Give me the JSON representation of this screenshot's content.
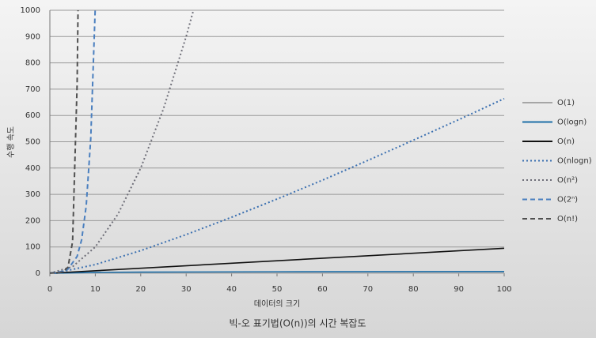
{
  "chart_data": {
    "type": "line",
    "title": "빅-오 표기법(O(n))의 시간 복잡도",
    "x_label": "데이터의 크기",
    "y_label": "수행 속도",
    "xlim": [
      0,
      100
    ],
    "xticks": [
      0,
      10,
      20,
      30,
      40,
      50,
      60,
      70,
      80,
      90,
      100
    ],
    "ylim": [
      0,
      1000
    ],
    "yticks": [
      0,
      100,
      200,
      300,
      400,
      500,
      600,
      700,
      800,
      900,
      1000
    ],
    "grid": true,
    "legend": "right",
    "series": [
      {
        "name": "O(1)",
        "color": "#a6a6a6",
        "dash": "solid",
        "x": [
          0,
          100
        ],
        "values": [
          1,
          1
        ]
      },
      {
        "name": "O(logn)",
        "color": "#1f6fa8",
        "dash": "solid",
        "x": [
          1,
          10,
          20,
          50,
          100
        ],
        "values": [
          0,
          3.3,
          4.3,
          5.6,
          6.6
        ]
      },
      {
        "name": "O(n)",
        "color": "#111111",
        "dash": "solid",
        "x": [
          0,
          100
        ],
        "values": [
          0,
          95
        ]
      },
      {
        "name": "O(nlogn)",
        "color": "#3a6fb0",
        "dash": "dotted",
        "x": [
          1,
          10,
          20,
          30,
          40,
          50,
          60,
          70,
          80,
          90,
          100
        ],
        "values": [
          0,
          33,
          86,
          147,
          213,
          282,
          354,
          429,
          506,
          584,
          664
        ]
      },
      {
        "name": "O(n²)",
        "color": "#6e6e78",
        "dash": "dotted",
        "x": [
          0,
          5,
          10,
          15,
          20,
          25,
          30,
          31.6
        ],
        "values": [
          0,
          25,
          100,
          225,
          400,
          625,
          900,
          1000
        ]
      },
      {
        "name": "O(2ⁿ)",
        "color": "#4a7fbf",
        "dash": "dashed",
        "x": [
          0,
          2,
          4,
          6,
          7,
          8,
          9,
          9.97
        ],
        "values": [
          1,
          4,
          16,
          64,
          128,
          256,
          512,
          1000
        ]
      },
      {
        "name": "O(n!)",
        "color": "#505050",
        "dash": "dashed",
        "x": [
          0,
          1,
          2,
          3,
          4,
          5,
          6,
          6.2
        ],
        "values": [
          1,
          1,
          2,
          6,
          24,
          120,
          720,
          1000
        ]
      }
    ]
  }
}
